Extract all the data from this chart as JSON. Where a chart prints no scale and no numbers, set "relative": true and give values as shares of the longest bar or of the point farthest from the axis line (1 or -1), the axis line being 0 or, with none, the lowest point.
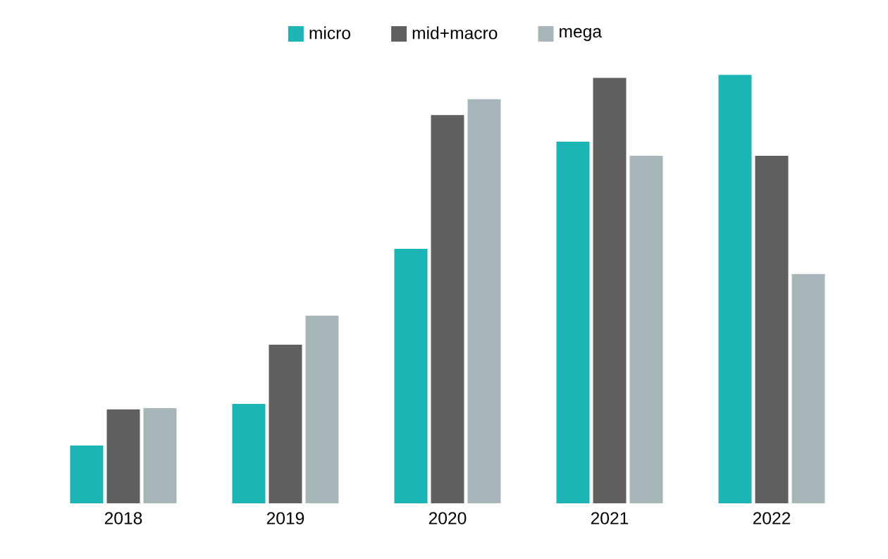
{
  "chart_data": {
    "type": "bar",
    "relative": true,
    "legend": "top",
    "categories": [
      "2018",
      "2019",
      "2020",
      "2021",
      "2022"
    ],
    "series": [
      {
        "name": "micro",
        "color": "#1bb5b5",
        "values": [
          0.135,
          0.232,
          0.594,
          0.844,
          1
        ]
      },
      {
        "name": "mid+macro",
        "color": "#5f5f5f",
        "values": [
          0.219,
          0.37,
          0.906,
          0.993,
          0.811
        ]
      },
      {
        "name": "mega",
        "color": "#a7b6b8",
        "values": [
          0.222,
          0.438,
          0.943,
          0.811,
          0.535
        ]
      }
    ]
  }
}
